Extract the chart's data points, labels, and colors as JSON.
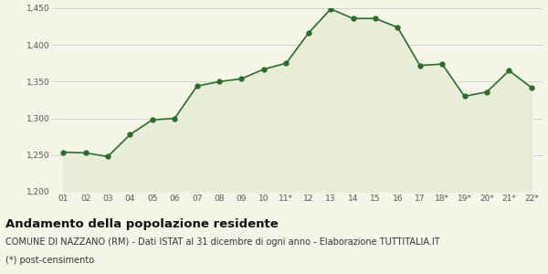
{
  "x_labels": [
    "01",
    "02",
    "03",
    "04",
    "05",
    "06",
    "07",
    "08",
    "09",
    "10",
    "11*",
    "12",
    "13",
    "14",
    "15",
    "16",
    "17",
    "18*",
    "19*",
    "20*",
    "21*",
    "22*"
  ],
  "y_values": [
    1254,
    1253,
    1248,
    1278,
    1298,
    1300,
    1344,
    1350,
    1354,
    1367,
    1375,
    1416,
    1449,
    1436,
    1436,
    1424,
    1372,
    1374,
    1330,
    1336,
    1365,
    1342
  ],
  "ylim": [
    1200,
    1450
  ],
  "yticks": [
    1200,
    1250,
    1300,
    1350,
    1400,
    1450
  ],
  "line_color": "#2d6a2d",
  "fill_color": "#e8edd8",
  "marker_color": "#2d6a2d",
  "bg_color": "#f5f5e8",
  "grid_color": "#cccccc",
  "title": "Andamento della popolazione residente",
  "subtitle": "COMUNE DI NAZZANO (RM) - Dati ISTAT al 31 dicembre di ogni anno - Elaborazione TUTTITALIA.IT",
  "footnote": "(*) post-censimento",
  "title_fontsize": 9.5,
  "subtitle_fontsize": 7,
  "footnote_fontsize": 7
}
